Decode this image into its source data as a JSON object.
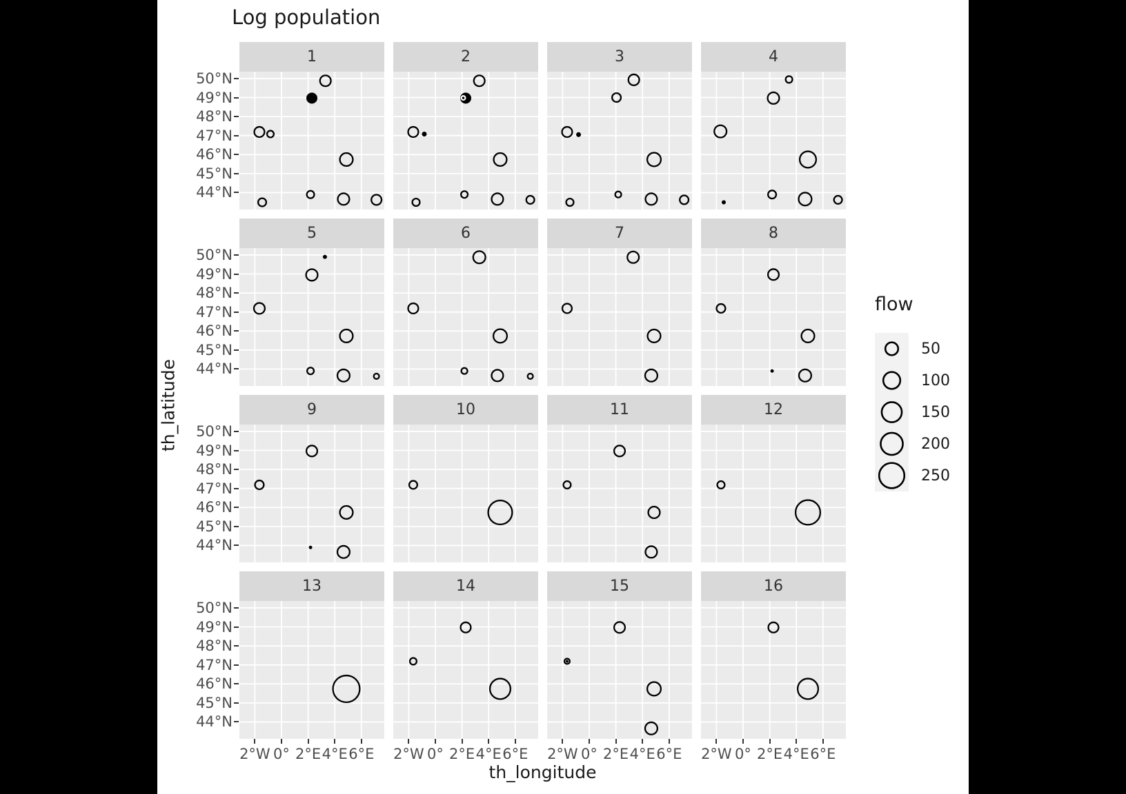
{
  "title": "Log population",
  "axes": {
    "x_title": "th_longitude",
    "y_title": "th_latitude",
    "x_ticks": [
      {
        "value": -2,
        "label": "2°W"
      },
      {
        "value": 0,
        "label": "0°"
      },
      {
        "value": 2,
        "label": "2°E"
      },
      {
        "value": 4,
        "label": "4°E"
      },
      {
        "value": 6,
        "label": "6°E"
      }
    ],
    "y_ticks": [
      {
        "value": 50,
        "label": "50°N"
      },
      {
        "value": 49,
        "label": "49°N"
      },
      {
        "value": 48,
        "label": "48°N"
      },
      {
        "value": 47,
        "label": "47°N"
      },
      {
        "value": 46,
        "label": "46°N"
      },
      {
        "value": 45,
        "label": "45°N"
      },
      {
        "value": 44,
        "label": "44°N"
      }
    ]
  },
  "legend": {
    "title": "flow",
    "entries": [
      {
        "label": "50",
        "d": 21
      },
      {
        "label": "100",
        "d": 27
      },
      {
        "label": "150",
        "d": 31.5
      },
      {
        "label": "200",
        "d": 34.5
      },
      {
        "label": "250",
        "d": 39
      }
    ]
  },
  "colors": {
    "panel_bg": "#EBEBEB",
    "strip_bg": "#D9D9D9",
    "grid": "#FFFFFF",
    "point_stroke": "#000000",
    "tick_text": "#4D4D4D",
    "letterbox": "#000000",
    "page_bg": "#FFFFFF",
    "legend_key_bg": "#F2F2F2"
  },
  "chart_data": {
    "type": "scatter",
    "title": "Log population",
    "xlabel": "th_longitude",
    "ylabel": "th_latitude",
    "size_variable": "flow",
    "size_legend_values": [
      50,
      100,
      150,
      200,
      250
    ],
    "x_range": [
      -3.16,
      7.72
    ],
    "y_range": [
      43.11,
      50.36
    ],
    "x_gridlines": [
      -2,
      0,
      2,
      4,
      6
    ],
    "y_gridlines": [
      44,
      45,
      46,
      47,
      48,
      49,
      50
    ],
    "grid": true,
    "legend_position": "right",
    "facets": [
      {
        "label": "1",
        "points": [
          {
            "lon": 3.3,
            "lat": 49.88,
            "flow": 33,
            "d": 18,
            "filled": false
          },
          {
            "lon": 2.28,
            "lat": 48.97,
            "flow": 23,
            "d": 16,
            "filled": true
          },
          {
            "lon": -1.66,
            "lat": 47.19,
            "flow": 28,
            "d": 17,
            "filled": false
          },
          {
            "lon": -0.83,
            "lat": 47.08,
            "flow": 9,
            "d": 12,
            "filled": false
          },
          {
            "lon": 4.87,
            "lat": 45.74,
            "flow": 51,
            "d": 21,
            "filled": false
          },
          {
            "lon": -1.45,
            "lat": 43.49,
            "flow": 15,
            "d": 14,
            "filled": false
          },
          {
            "lon": 2.18,
            "lat": 43.9,
            "flow": 12,
            "d": 13,
            "filled": false
          },
          {
            "lon": 4.66,
            "lat": 43.66,
            "flow": 39,
            "d": 19,
            "filled": false
          },
          {
            "lon": 7.13,
            "lat": 43.62,
            "flow": 28,
            "d": 17,
            "filled": false
          }
        ]
      },
      {
        "label": "2",
        "points": [
          {
            "lon": 3.3,
            "lat": 49.88,
            "flow": 33,
            "d": 18,
            "filled": false
          },
          {
            "lon": 2.28,
            "lat": 48.97,
            "flow": 23,
            "d": 16,
            "filled": true
          },
          {
            "lon": 2.1,
            "lat": 48.98,
            "flow": 2,
            "d": 8,
            "filled": false,
            "color": "#FFFFFF"
          },
          {
            "lon": -1.66,
            "lat": 47.19,
            "flow": 28,
            "d": 17,
            "filled": false
          },
          {
            "lon": -0.83,
            "lat": 47.08,
            "flow": 1,
            "d": 7,
            "filled": true
          },
          {
            "lon": 4.87,
            "lat": 45.74,
            "flow": 51,
            "d": 21,
            "filled": false
          },
          {
            "lon": -1.45,
            "lat": 43.49,
            "flow": 12,
            "d": 13,
            "filled": false
          },
          {
            "lon": 2.18,
            "lat": 43.9,
            "flow": 9,
            "d": 12,
            "filled": false
          },
          {
            "lon": 4.66,
            "lat": 43.66,
            "flow": 39,
            "d": 19,
            "filled": false
          },
          {
            "lon": 7.13,
            "lat": 43.62,
            "flow": 15,
            "d": 14,
            "filled": false
          }
        ]
      },
      {
        "label": "3",
        "points": [
          {
            "lon": 3.35,
            "lat": 49.93,
            "flow": 33,
            "d": 18,
            "filled": false
          },
          {
            "lon": 2.05,
            "lat": 49.0,
            "flow": 19,
            "d": 15,
            "filled": false
          },
          {
            "lon": -1.66,
            "lat": 47.19,
            "flow": 28,
            "d": 17,
            "filled": false
          },
          {
            "lon": -0.8,
            "lat": 47.05,
            "flow": 1,
            "d": 7,
            "filled": true
          },
          {
            "lon": 4.87,
            "lat": 45.74,
            "flow": 58,
            "d": 22,
            "filled": false
          },
          {
            "lon": -1.45,
            "lat": 43.49,
            "flow": 12,
            "d": 13,
            "filled": false
          },
          {
            "lon": 2.18,
            "lat": 43.9,
            "flow": 6,
            "d": 11,
            "filled": false
          },
          {
            "lon": 4.66,
            "lat": 43.66,
            "flow": 39,
            "d": 19,
            "filled": false
          },
          {
            "lon": 7.13,
            "lat": 43.62,
            "flow": 19,
            "d": 15,
            "filled": false
          }
        ]
      },
      {
        "label": "4",
        "points": [
          {
            "lon": 3.45,
            "lat": 49.95,
            "flow": 9,
            "d": 12,
            "filled": false
          },
          {
            "lon": 2.28,
            "lat": 48.97,
            "flow": 39,
            "d": 19,
            "filled": false
          },
          {
            "lon": -1.7,
            "lat": 47.22,
            "flow": 45,
            "d": 20,
            "filled": false
          },
          {
            "lon": 4.87,
            "lat": 45.74,
            "flow": 88,
            "d": 26,
            "filled": false
          },
          {
            "lon": -1.45,
            "lat": 43.49,
            "flow": 1,
            "d": 6,
            "filled": true
          },
          {
            "lon": 2.18,
            "lat": 43.9,
            "flow": 15,
            "d": 14,
            "filled": false
          },
          {
            "lon": 4.66,
            "lat": 43.66,
            "flow": 51,
            "d": 21,
            "filled": false
          },
          {
            "lon": 7.13,
            "lat": 43.62,
            "flow": 15,
            "d": 14,
            "filled": false
          }
        ]
      },
      {
        "label": "5",
        "points": [
          {
            "lon": 3.26,
            "lat": 49.9,
            "flow": 1,
            "d": 6,
            "filled": true
          },
          {
            "lon": 2.28,
            "lat": 48.95,
            "flow": 39,
            "d": 19,
            "filled": false
          },
          {
            "lon": -1.66,
            "lat": 47.19,
            "flow": 33,
            "d": 18,
            "filled": false
          },
          {
            "lon": 4.87,
            "lat": 45.74,
            "flow": 51,
            "d": 21,
            "filled": false
          },
          {
            "lon": 2.18,
            "lat": 43.9,
            "flow": 9,
            "d": 12,
            "filled": false
          },
          {
            "lon": 4.66,
            "lat": 43.66,
            "flow": 45,
            "d": 20,
            "filled": false
          },
          {
            "lon": 7.13,
            "lat": 43.62,
            "flow": 4,
            "d": 10,
            "filled": false
          }
        ]
      },
      {
        "label": "6",
        "points": [
          {
            "lon": 3.3,
            "lat": 49.88,
            "flow": 45,
            "d": 20,
            "filled": false
          },
          {
            "lon": -1.66,
            "lat": 47.19,
            "flow": 28,
            "d": 17,
            "filled": false
          },
          {
            "lon": 4.87,
            "lat": 45.74,
            "flow": 58,
            "d": 22,
            "filled": false
          },
          {
            "lon": 2.18,
            "lat": 43.9,
            "flow": 6,
            "d": 11,
            "filled": false
          },
          {
            "lon": 4.66,
            "lat": 43.66,
            "flow": 39,
            "d": 19,
            "filled": false
          },
          {
            "lon": 7.13,
            "lat": 43.62,
            "flow": 4,
            "d": 10,
            "filled": false
          }
        ]
      },
      {
        "label": "7",
        "points": [
          {
            "lon": 3.3,
            "lat": 49.88,
            "flow": 39,
            "d": 19,
            "filled": false
          },
          {
            "lon": -1.66,
            "lat": 47.19,
            "flow": 23,
            "d": 16,
            "filled": false
          },
          {
            "lon": 4.87,
            "lat": 45.74,
            "flow": 51,
            "d": 21,
            "filled": false
          },
          {
            "lon": 4.66,
            "lat": 43.66,
            "flow": 45,
            "d": 20,
            "filled": false
          }
        ]
      },
      {
        "label": "8",
        "points": [
          {
            "lon": 2.28,
            "lat": 48.97,
            "flow": 33,
            "d": 18,
            "filled": false
          },
          {
            "lon": -1.66,
            "lat": 47.19,
            "flow": 19,
            "d": 15,
            "filled": false
          },
          {
            "lon": 4.87,
            "lat": 45.74,
            "flow": 51,
            "d": 21,
            "filled": false
          },
          {
            "lon": 2.18,
            "lat": 43.9,
            "flow": 1,
            "d": 5,
            "filled": true
          },
          {
            "lon": 4.66,
            "lat": 43.66,
            "flow": 45,
            "d": 20,
            "filled": false
          }
        ]
      },
      {
        "label": "9",
        "points": [
          {
            "lon": 2.28,
            "lat": 48.97,
            "flow": 33,
            "d": 18,
            "filled": false
          },
          {
            "lon": -1.66,
            "lat": 47.19,
            "flow": 19,
            "d": 15,
            "filled": false
          },
          {
            "lon": 4.87,
            "lat": 45.74,
            "flow": 51,
            "d": 21,
            "filled": false
          },
          {
            "lon": 2.18,
            "lat": 43.9,
            "flow": 1,
            "d": 5,
            "filled": true
          },
          {
            "lon": 4.66,
            "lat": 43.66,
            "flow": 45,
            "d": 20,
            "filled": false
          }
        ]
      },
      {
        "label": "10",
        "points": [
          {
            "lon": -1.66,
            "lat": 47.19,
            "flow": 15,
            "d": 14,
            "filled": false
          },
          {
            "lon": 4.87,
            "lat": 45.74,
            "flow": 217,
            "d": 37,
            "filled": false
          }
        ]
      },
      {
        "label": "11",
        "points": [
          {
            "lon": 2.28,
            "lat": 48.97,
            "flow": 33,
            "d": 18,
            "filled": false
          },
          {
            "lon": -1.66,
            "lat": 47.19,
            "flow": 12,
            "d": 13,
            "filled": false
          },
          {
            "lon": 4.87,
            "lat": 45.74,
            "flow": 39,
            "d": 19,
            "filled": false
          },
          {
            "lon": 4.66,
            "lat": 43.66,
            "flow": 39,
            "d": 19,
            "filled": false
          }
        ]
      },
      {
        "label": "12",
        "points": [
          {
            "lon": -1.66,
            "lat": 47.19,
            "flow": 12,
            "d": 13,
            "filled": false
          },
          {
            "lon": 4.87,
            "lat": 45.74,
            "flow": 231,
            "d": 38,
            "filled": false
          }
        ]
      },
      {
        "label": "13",
        "points": [
          {
            "lon": 4.87,
            "lat": 45.74,
            "flow": 280,
            "d": 41,
            "filled": false
          }
        ]
      },
      {
        "label": "14",
        "points": [
          {
            "lon": 2.28,
            "lat": 48.97,
            "flow": 28,
            "d": 17,
            "filled": false
          },
          {
            "lon": -1.66,
            "lat": 47.19,
            "flow": 9,
            "d": 12,
            "filled": false
          },
          {
            "lon": 4.87,
            "lat": 45.74,
            "flow": 152,
            "d": 32,
            "filled": false
          }
        ]
      },
      {
        "label": "15",
        "points": [
          {
            "lon": 2.28,
            "lat": 48.97,
            "flow": 33,
            "d": 18,
            "filled": false
          },
          {
            "lon": -1.66,
            "lat": 47.19,
            "flow": 4,
            "d": 10,
            "filled": false
          },
          {
            "lon": -1.66,
            "lat": 47.19,
            "flow": 1,
            "d": 4,
            "filled": true
          },
          {
            "lon": 4.87,
            "lat": 45.74,
            "flow": 58,
            "d": 22,
            "filled": false
          },
          {
            "lon": 4.66,
            "lat": 43.66,
            "flow": 45,
            "d": 20,
            "filled": false
          }
        ]
      },
      {
        "label": "16",
        "points": [
          {
            "lon": 2.28,
            "lat": 48.97,
            "flow": 28,
            "d": 17,
            "filled": false
          },
          {
            "lon": 4.87,
            "lat": 45.74,
            "flow": 152,
            "d": 32,
            "filled": false
          }
        ]
      }
    ]
  }
}
